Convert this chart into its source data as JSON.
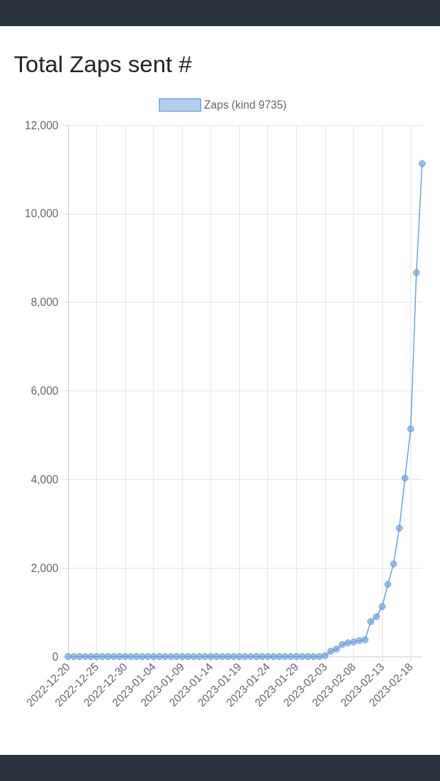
{
  "chart_data": {
    "type": "line",
    "title": "Total Zaps sent #",
    "categories": [
      "2022-12-20",
      null,
      null,
      null,
      null,
      "2022-12-25",
      null,
      null,
      null,
      null,
      "2022-12-30",
      null,
      null,
      null,
      null,
      "2023-01-04",
      null,
      null,
      null,
      null,
      "2023-01-09",
      null,
      null,
      null,
      null,
      "2023-01-14",
      null,
      null,
      null,
      null,
      "2023-01-19",
      null,
      null,
      null,
      null,
      "2023-01-24",
      null,
      null,
      null,
      null,
      "2023-01-29",
      null,
      null,
      null,
      null,
      "2023-02-03",
      null,
      null,
      null,
      null,
      "2023-02-08",
      null,
      null,
      null,
      null,
      "2023-02-13",
      null,
      null,
      null,
      null,
      "2023-02-18",
      null,
      null
    ],
    "series": [
      {
        "name": "Zaps (kind 9735)",
        "color": "#6a9fdc",
        "values": [
          0,
          0,
          0,
          0,
          0,
          0,
          0,
          0,
          0,
          0,
          0,
          0,
          0,
          0,
          0,
          0,
          0,
          0,
          0,
          0,
          0,
          0,
          0,
          0,
          0,
          0,
          0,
          0,
          0,
          0,
          0,
          0,
          0,
          0,
          0,
          0,
          0,
          0,
          0,
          0,
          0,
          0,
          0,
          0,
          0,
          20,
          120,
          170,
          270,
          310,
          330,
          360,
          380,
          790,
          900,
          1130,
          1630,
          2090,
          2900,
          4030,
          5140,
          8670,
          11130
        ]
      }
    ],
    "ylim": [
      0,
      12000
    ],
    "yticks": [
      0,
      {
        "value": 2000,
        "label": "2,000"
      },
      {
        "value": 4000,
        "label": "4,000"
      },
      {
        "value": 6000,
        "label": "6,000"
      },
      {
        "value": 8000,
        "label": "8,000"
      },
      {
        "value": 10000,
        "label": "10,000"
      },
      {
        "value": 12000,
        "label": "12,000"
      }
    ],
    "grid": true,
    "legend": "top",
    "marker": "circle",
    "line_style": "solid"
  }
}
